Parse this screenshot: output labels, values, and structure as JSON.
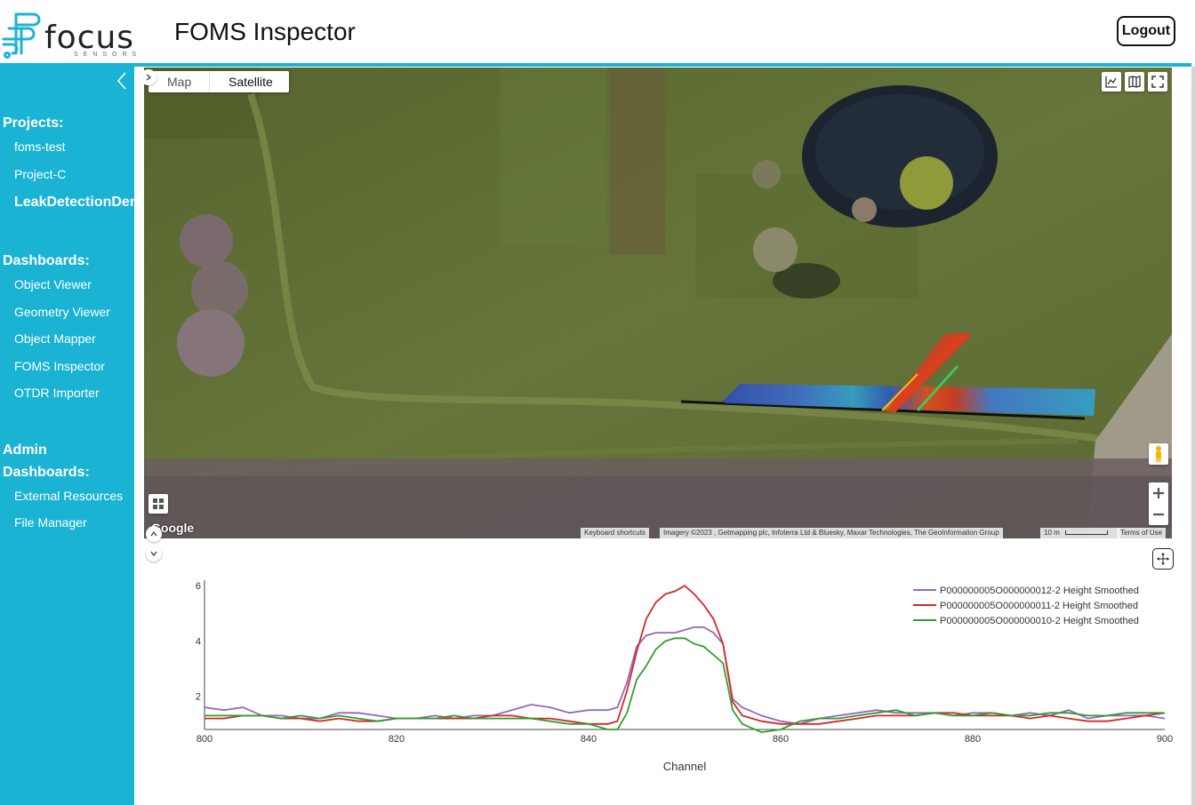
{
  "header": {
    "logo_word": "focus",
    "logo_subtext": "SENSORS",
    "title": "FOMS Inspector",
    "logout_label": "Logout"
  },
  "sidebar": {
    "projects_heading": "Projects:",
    "projects": [
      {
        "label": "foms-test"
      },
      {
        "label": "Project-C"
      },
      {
        "label": "LeakDetectionDemo",
        "active": true
      }
    ],
    "dashboards_heading": "Dashboards:",
    "dashboards": [
      {
        "label": "Object Viewer"
      },
      {
        "label": "Geometry Viewer"
      },
      {
        "label": "Object Mapper"
      },
      {
        "label": "FOMS Inspector"
      },
      {
        "label": "OTDR Importer"
      }
    ],
    "admin_heading_line1": "Admin",
    "admin_heading_line2": "Dashboards:",
    "admin": [
      {
        "label": "External Resources"
      },
      {
        "label": "File Manager"
      }
    ]
  },
  "map": {
    "type_options": [
      "Map",
      "Satellite"
    ],
    "selected_type": "Satellite",
    "google_mark": "Google",
    "attribution": {
      "shortcuts": "Keyboard shortcuts",
      "imagery": "Imagery ©2023 , Getmapping plc, Infoterra Ltd & Bluesky, Maxar Technologies, The GeoInformation Group",
      "scale": "10 m",
      "terms": "Terms of Use"
    }
  },
  "colors": {
    "accent": "#1bb3d3",
    "series_purple": "#9467bd",
    "series_red": "#d62728",
    "series_green": "#2ca02c"
  },
  "chart_data": {
    "type": "line",
    "xlabel": "Channel",
    "ylabel": "",
    "xlim": [
      800,
      900
    ],
    "ylim": [
      0.8,
      6.2
    ],
    "xticks": [
      800,
      820,
      840,
      860,
      880,
      900
    ],
    "yticks": [
      2,
      4,
      6
    ],
    "grid": false,
    "legend": "top-right",
    "x": [
      800,
      802,
      804,
      806,
      808,
      810,
      812,
      814,
      816,
      818,
      820,
      822,
      824,
      826,
      828,
      830,
      832,
      834,
      836,
      838,
      840,
      842,
      843,
      844,
      845,
      846,
      847,
      848,
      849,
      850,
      851,
      852,
      853,
      854,
      855,
      856,
      858,
      860,
      862,
      864,
      866,
      868,
      870,
      872,
      874,
      876,
      878,
      880,
      882,
      884,
      886,
      888,
      890,
      892,
      894,
      896,
      898,
      900
    ],
    "series": [
      {
        "name": "P000000005O000000012-2 Height Smoothed",
        "color": "#9467bd",
        "values": [
          1.6,
          1.5,
          1.6,
          1.3,
          1.3,
          1.2,
          1.2,
          1.4,
          1.4,
          1.3,
          1.2,
          1.2,
          1.3,
          1.2,
          1.3,
          1.3,
          1.5,
          1.7,
          1.6,
          1.4,
          1.5,
          1.5,
          1.6,
          2.5,
          3.8,
          4.2,
          4.3,
          4.3,
          4.3,
          4.4,
          4.5,
          4.5,
          4.3,
          3.9,
          1.9,
          1.6,
          1.3,
          1.1,
          1.0,
          1.2,
          1.3,
          1.4,
          1.5,
          1.4,
          1.4,
          1.4,
          1.3,
          1.4,
          1.4,
          1.3,
          1.4,
          1.3,
          1.5,
          1.2,
          1.3,
          1.3,
          1.3,
          1.2
        ]
      },
      {
        "name": "P000000005O000000011-2 Height Smoothed",
        "color": "#d62728",
        "values": [
          1.2,
          1.2,
          1.3,
          1.3,
          1.2,
          1.2,
          1.1,
          1.2,
          1.1,
          1.1,
          1.2,
          1.2,
          1.2,
          1.2,
          1.2,
          1.3,
          1.3,
          1.2,
          1.2,
          1.1,
          1.0,
          1.0,
          1.1,
          2.2,
          3.6,
          4.8,
          5.4,
          5.7,
          5.8,
          6.0,
          5.7,
          5.3,
          4.8,
          3.9,
          1.8,
          1.3,
          1.1,
          1.0,
          1.0,
          1.0,
          1.1,
          1.2,
          1.3,
          1.3,
          1.3,
          1.4,
          1.4,
          1.3,
          1.3,
          1.3,
          1.2,
          1.3,
          1.2,
          1.1,
          1.1,
          1.2,
          1.3,
          1.4
        ]
      },
      {
        "name": "P000000005O000000010-2 Height Smoothed",
        "color": "#2ca02c",
        "values": [
          1.3,
          1.3,
          1.3,
          1.3,
          1.2,
          1.3,
          1.2,
          1.3,
          1.2,
          1.1,
          1.2,
          1.2,
          1.2,
          1.3,
          1.2,
          1.2,
          1.2,
          1.2,
          1.1,
          1.0,
          1.0,
          0.8,
          0.8,
          1.4,
          2.6,
          3.1,
          3.7,
          4.0,
          4.1,
          4.1,
          3.9,
          3.8,
          3.5,
          3.2,
          1.5,
          1.0,
          0.7,
          0.8,
          1.1,
          1.2,
          1.2,
          1.3,
          1.4,
          1.5,
          1.3,
          1.4,
          1.3,
          1.3,
          1.4,
          1.3,
          1.3,
          1.4,
          1.4,
          1.3,
          1.3,
          1.4,
          1.4,
          1.4
        ]
      }
    ]
  }
}
